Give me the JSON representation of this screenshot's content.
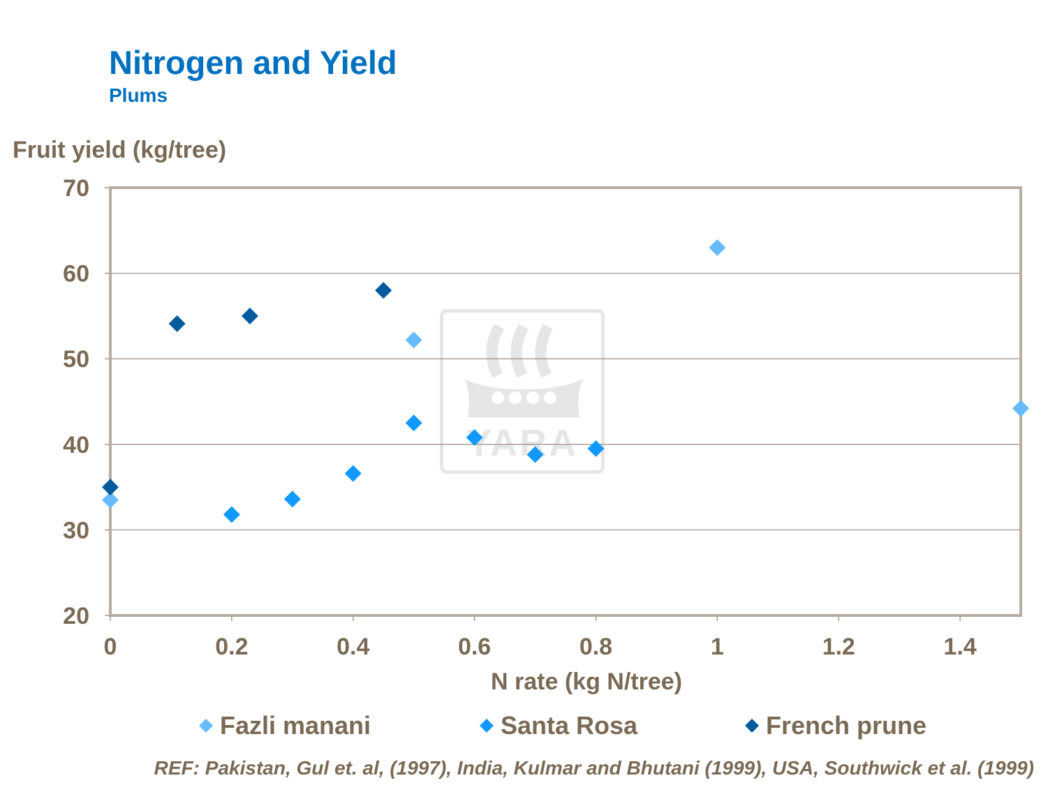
{
  "header": {
    "title": "Nitrogen and Yield",
    "subtitle": "Plums"
  },
  "watermark": {
    "logo": "yara-logo",
    "text": "YARA"
  },
  "reference": "REF: Pakistan, Gul et. al, (1997), India, Kulmar and Bhutani (1999), USA, Southwick et al. (1999)",
  "chart_data": {
    "type": "scatter",
    "title": "Nitrogen and Yield",
    "subtitle": "Plums",
    "xlabel": "N rate (kg N/tree)",
    "ylabel": "Fruit yield (kg/tree)",
    "xlim": [
      0,
      1.5
    ],
    "ylim": [
      20,
      70
    ],
    "xticks": [
      "0",
      "0.2",
      "0.4",
      "0.6",
      "0.8",
      "1",
      "1.2",
      "1.4"
    ],
    "xtick_values": [
      0,
      0.2,
      0.4,
      0.6,
      0.8,
      1.0,
      1.2,
      1.4
    ],
    "yticks": [
      "20",
      "30",
      "40",
      "50",
      "60",
      "70"
    ],
    "ytick_values": [
      20,
      30,
      40,
      50,
      60,
      70
    ],
    "grid": "horizontal",
    "legend": "bottom",
    "marker": "diamond",
    "series": [
      {
        "name": "Fazli manani",
        "color": "#66BBFF",
        "points": [
          [
            0,
            33.5
          ],
          [
            0.5,
            52.2
          ],
          [
            1.0,
            63.0
          ],
          [
            1.5,
            44.2
          ]
        ]
      },
      {
        "name": "Santa Rosa",
        "color": "#1199FF",
        "points": [
          [
            0.2,
            31.8
          ],
          [
            0.3,
            33.6
          ],
          [
            0.4,
            36.6
          ],
          [
            0.5,
            42.5
          ],
          [
            0.6,
            40.8
          ],
          [
            0.7,
            38.8
          ],
          [
            0.8,
            39.5
          ]
        ]
      },
      {
        "name": "French prune",
        "color": "#005A9C",
        "points": [
          [
            0,
            35.0
          ],
          [
            0.11,
            54.1
          ],
          [
            0.23,
            55.0
          ],
          [
            0.45,
            58.0
          ]
        ]
      }
    ]
  }
}
